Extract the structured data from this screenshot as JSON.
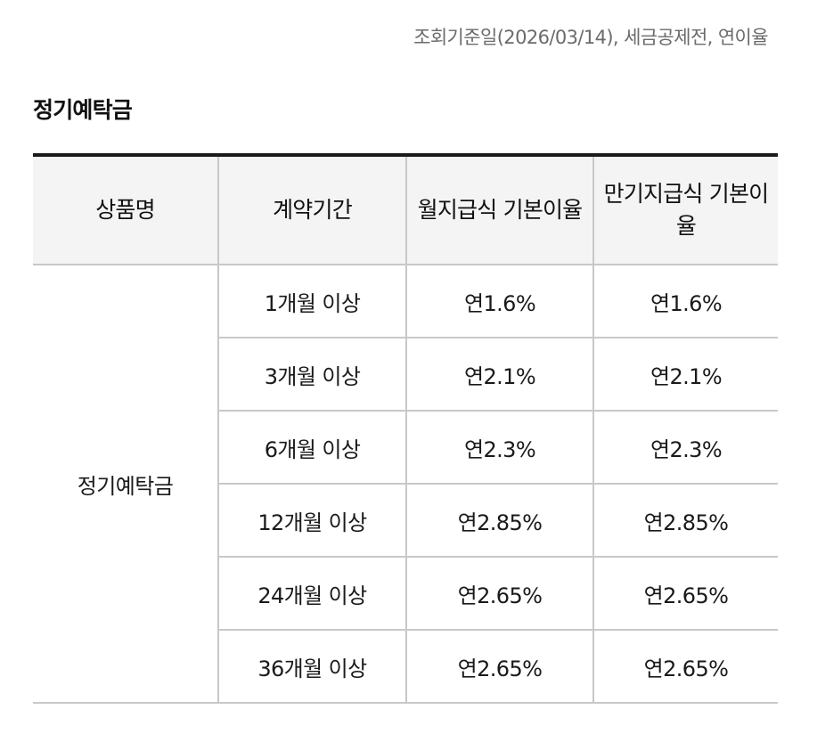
{
  "reference_note": "조회기준일(2026/03/14), 세금공제전, 연이율",
  "section_title": "정기예탁금",
  "table": {
    "headers": [
      "상품명",
      "계약기간",
      "월지급식 기본이율",
      "만기지급식 기본이율"
    ],
    "product_name": "정기예탁금",
    "rows": [
      {
        "period": "1개월 이상",
        "monthly_rate": "연1.6%",
        "maturity_rate": "연1.6%"
      },
      {
        "period": "3개월 이상",
        "monthly_rate": "연2.1%",
        "maturity_rate": "연2.1%"
      },
      {
        "period": "6개월 이상",
        "monthly_rate": "연2.3%",
        "maturity_rate": "연2.3%"
      },
      {
        "period": "12개월 이상",
        "monthly_rate": "연2.85%",
        "maturity_rate": "연2.85%"
      },
      {
        "period": "24개월 이상",
        "monthly_rate": "연2.65%",
        "maturity_rate": "연2.65%"
      },
      {
        "period": "36개월 이상",
        "monthly_rate": "연2.65%",
        "maturity_rate": "연2.65%"
      }
    ]
  }
}
